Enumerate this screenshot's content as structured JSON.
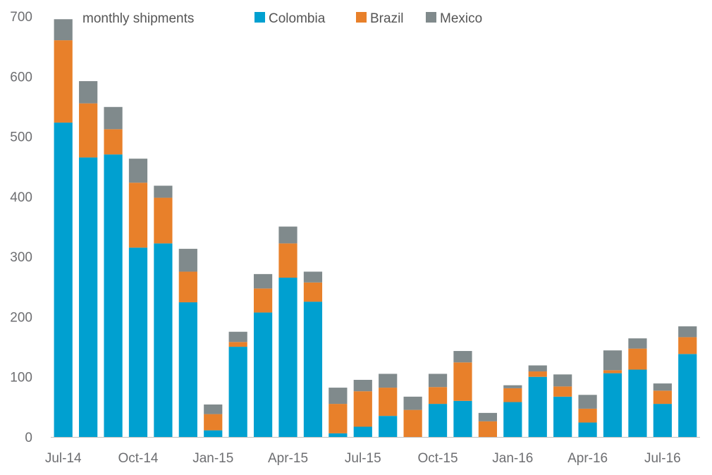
{
  "chart_data": {
    "type": "bar",
    "stacked": true,
    "annotation": "monthly shipments",
    "categories": [
      "Jul-14",
      "Aug-14",
      "Sep-14",
      "Oct-14",
      "Nov-14",
      "Dec-14",
      "Jan-15",
      "Feb-15",
      "Mar-15",
      "Apr-15",
      "May-15",
      "Jun-15",
      "Jul-15",
      "Aug-15",
      "Sep-15",
      "Oct-15",
      "Nov-15",
      "Dec-15",
      "Jan-16",
      "Feb-16",
      "Mar-16",
      "Apr-16",
      "May-16",
      "Jun-16",
      "Jul-16",
      "Aug-16"
    ],
    "x_tick_labels": [
      "Jul-14",
      "Oct-14",
      "Jan-15",
      "Apr-15",
      "Jul-15",
      "Oct-15",
      "Jan-16",
      "Apr-16",
      "Jul-16"
    ],
    "x_tick_indices": [
      0,
      3,
      6,
      9,
      12,
      15,
      18,
      21,
      24
    ],
    "series": [
      {
        "name": "Colombia",
        "color": "#00a0d0",
        "values": [
          523,
          465,
          470,
          315,
          322,
          224,
          11,
          150,
          207,
          265,
          225,
          6,
          17,
          35,
          0,
          55,
          60,
          0,
          58,
          100,
          67,
          24,
          106,
          112,
          55,
          138
        ]
      },
      {
        "name": "Brazil",
        "color": "#e8802a",
        "values": [
          137,
          90,
          42,
          108,
          76,
          51,
          27,
          8,
          40,
          57,
          32,
          49,
          59,
          47,
          45,
          28,
          64,
          26,
          23,
          9,
          17,
          23,
          5,
          35,
          22,
          28
        ]
      },
      {
        "name": "Mexico",
        "color": "#808a8c",
        "values": [
          35,
          37,
          37,
          40,
          20,
          38,
          16,
          17,
          24,
          28,
          18,
          27,
          19,
          23,
          22,
          22,
          19,
          14,
          5,
          10,
          20,
          23,
          33,
          17,
          12,
          18
        ]
      }
    ],
    "ylim": [
      0,
      700
    ],
    "yticks": [
      0,
      100,
      200,
      300,
      400,
      500,
      600,
      700
    ],
    "xlabel": "",
    "ylabel": "",
    "grid": false,
    "legend_position": "top-right"
  }
}
